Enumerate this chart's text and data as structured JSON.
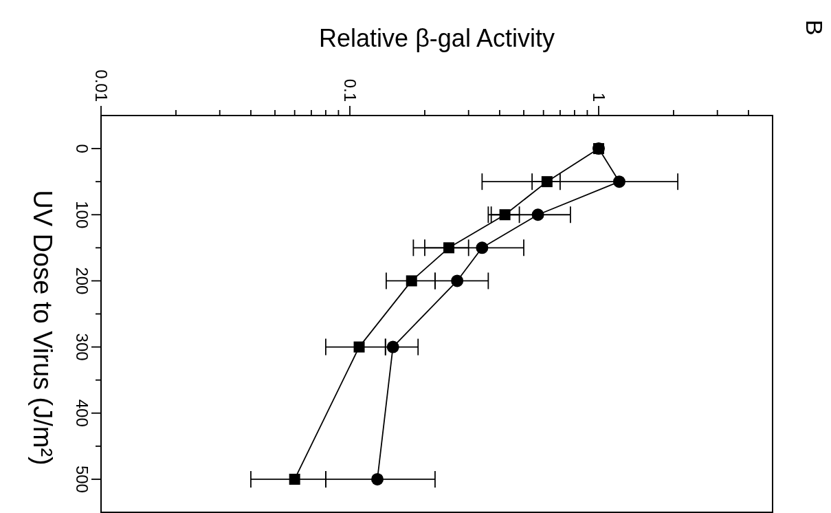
{
  "chart_data": {
    "type": "line",
    "xlabel": "Relative β-gal Activity",
    "ylabel": "UV Dose to Virus (J/m²)",
    "annotations": [
      "B"
    ],
    "series": [
      {
        "color": "#000000",
        "marker": "circle",
        "x": [
          1.0,
          1.21,
          0.57,
          0.34,
          0.27,
          0.149,
          0.129
        ],
        "values": [
          0,
          50,
          100,
          150,
          200,
          300,
          500
        ],
        "xerrors": [
          null,
          [
            0.34,
            2.08
          ],
          [
            0.36,
            0.77
          ],
          [
            0.2,
            0.5
          ],
          [
            0.22,
            0.36
          ],
          [
            0.139,
            0.188
          ],
          [
            0.08,
            0.22
          ]
        ]
      },
      {
        "color": "#000000",
        "marker": "square",
        "x": [
          1.0,
          0.62,
          0.42,
          0.25,
          0.177,
          0.109,
          0.06
        ],
        "values": [
          0,
          50,
          100,
          150,
          200,
          300,
          500
        ],
        "xerrors": [
          null,
          [
            0.54,
            0.7
          ],
          [
            0.37,
            0.48
          ],
          [
            0.18,
            0.3
          ],
          [
            0.14,
            0.22
          ],
          [
            0.08,
            0.139
          ],
          [
            0.04,
            0.08
          ]
        ]
      }
    ],
    "log": "x",
    "xlim": [
      0.01,
      5
    ],
    "ylim": [
      550,
      -50
    ],
    "xticks": [
      0.01,
      {
        "value": 0.02,
        "label": null
      },
      {
        "value": 0.03,
        "label": null
      },
      {
        "value": 0.04,
        "label": null
      },
      {
        "value": 0.05,
        "label": null
      },
      {
        "value": 0.06,
        "label": null
      },
      {
        "value": 0.07,
        "label": null
      },
      {
        "value": 0.08,
        "label": null
      },
      {
        "value": 0.09,
        "label": null
      },
      0.1,
      {
        "value": 0.2,
        "label": null
      },
      {
        "value": 0.3,
        "label": null
      },
      {
        "value": 0.4,
        "label": null
      },
      {
        "value": 0.5,
        "label": null
      },
      {
        "value": 0.6,
        "label": null
      },
      {
        "value": 0.7,
        "label": null
      },
      {
        "value": 0.8,
        "label": null
      },
      {
        "value": 0.9,
        "label": null
      },
      1,
      {
        "value": 2,
        "label": null
      },
      {
        "value": 3,
        "label": null
      },
      {
        "value": 4,
        "label": null
      }
    ],
    "yticks": [
      0,
      {
        "value": 50,
        "label": null
      },
      100,
      {
        "value": 150,
        "label": null
      },
      200,
      {
        "value": 250,
        "label": null
      },
      300,
      {
        "value": 350,
        "label": null
      },
      400,
      {
        "value": 450,
        "label": null
      },
      500
    ]
  }
}
